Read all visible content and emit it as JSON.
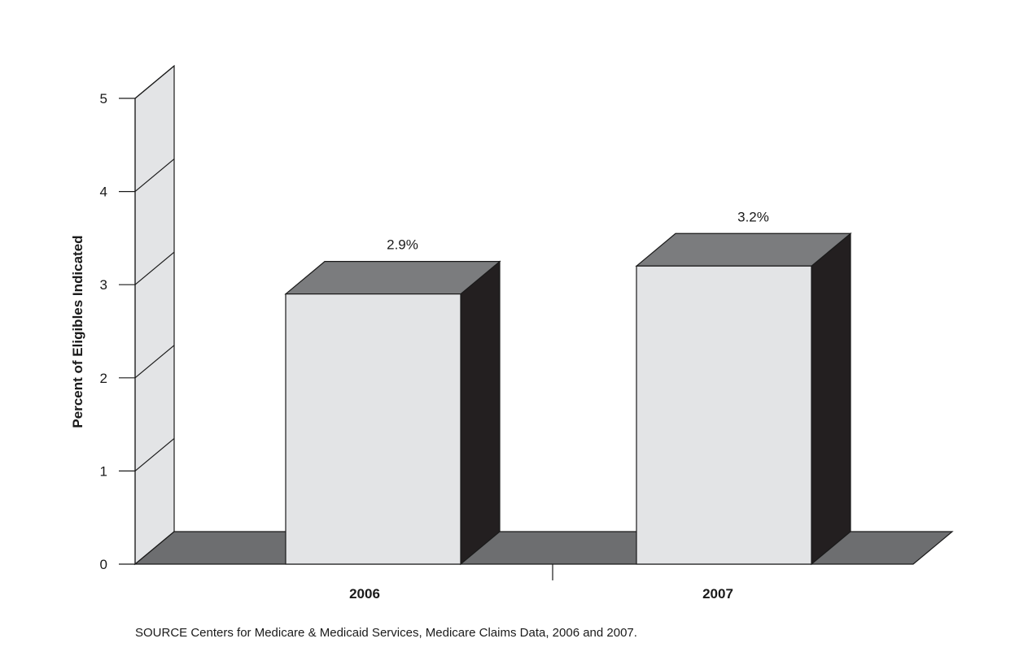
{
  "chart_data": {
    "type": "bar",
    "categories": [
      "2006",
      "2007"
    ],
    "series": [
      {
        "values": [
          2.9,
          3.2
        ]
      }
    ],
    "data_labels": [
      "2.9%",
      "3.2%"
    ],
    "ylabel": "Percent of Eligibles Indicated",
    "xlabel": "",
    "ylim": [
      0,
      5
    ],
    "yticks": [
      "0",
      "1",
      "2",
      "3",
      "4",
      "5"
    ],
    "style": "3d",
    "grid": false,
    "legend": "none"
  },
  "source_note": "SOURCE Centers for Medicare & Medicaid Services, Medicare Claims Data, 2006 and 2007.",
  "colors": {
    "bar_front": "#e3e4e6",
    "bar_top": "#7b7c7e",
    "bar_side": "#231f20",
    "floor": "#6d6e70",
    "back_wall": "#e3e4e6",
    "outline": "#1a1a1a"
  }
}
